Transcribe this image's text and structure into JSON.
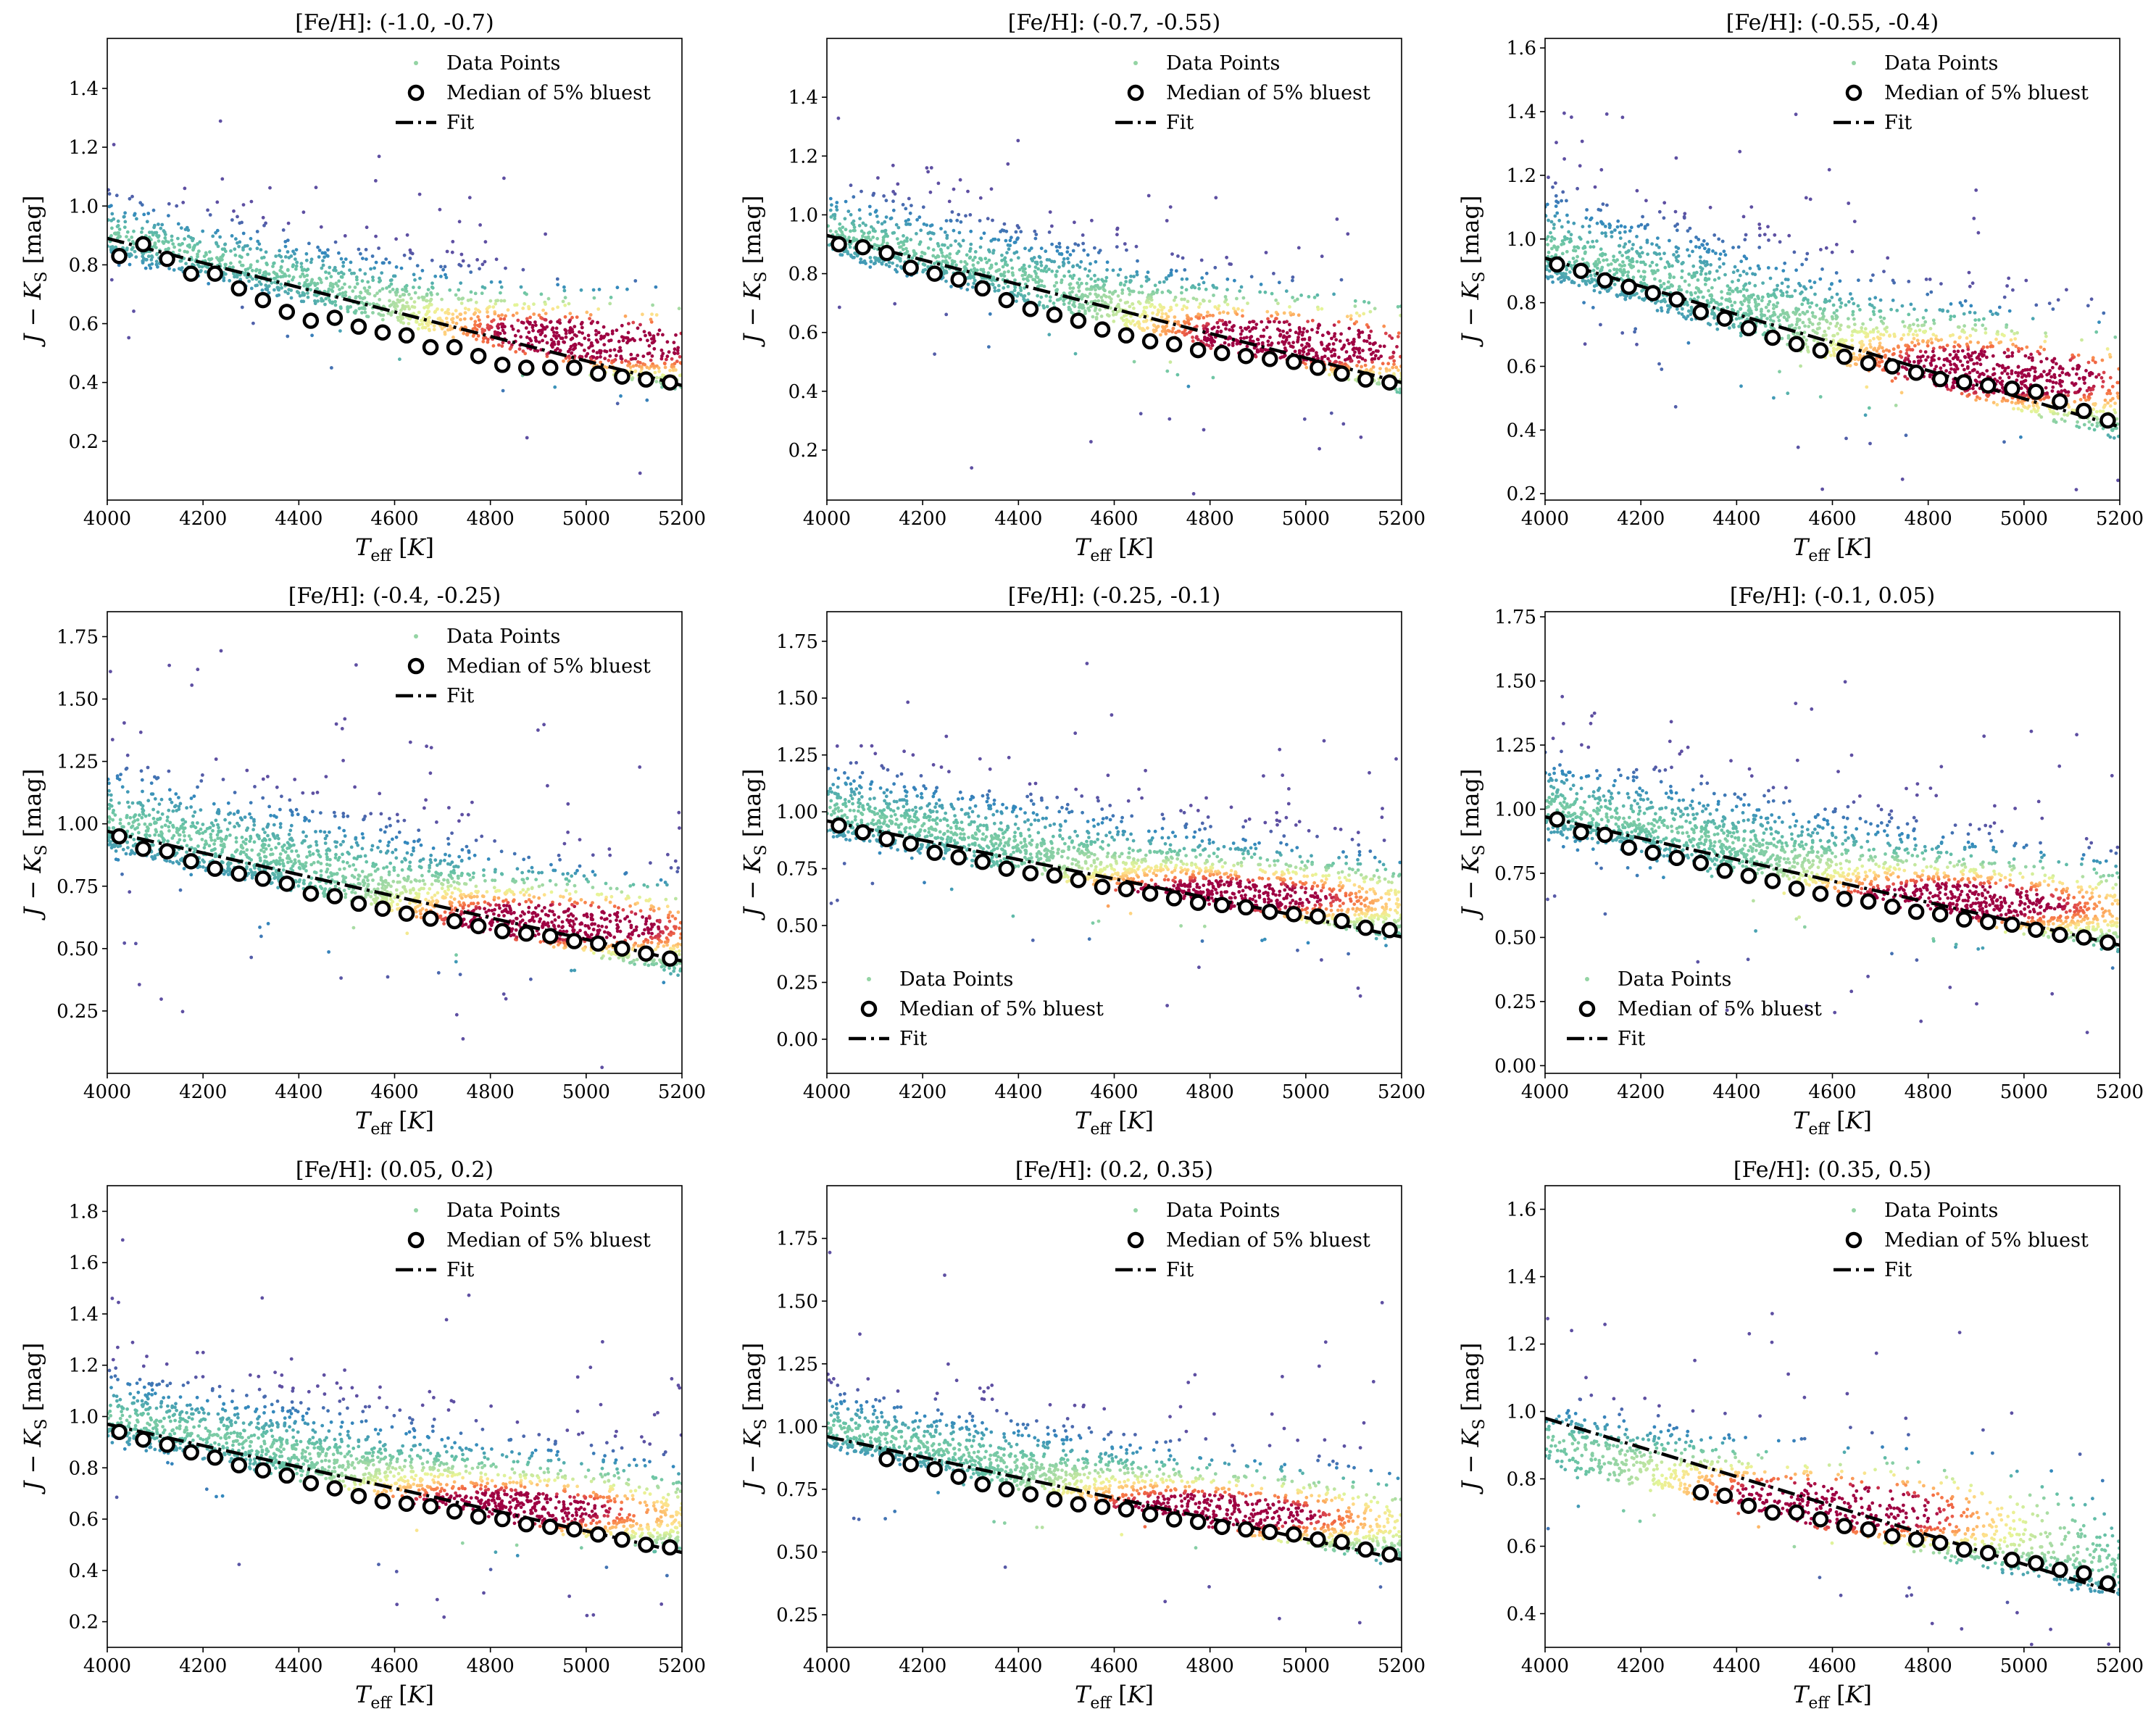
{
  "figure": {
    "x_label": "T_eff [K]",
    "y_label": "J − K_S [mag]",
    "legend_labels": {
      "points": "Data Points",
      "median": "Median of 5% bluest",
      "fit": "Fit"
    }
  },
  "chart_data": [
    {
      "type": "scatter",
      "title": "[Fe/H]: (-1.0, -0.7)",
      "xlim": [
        4000,
        5200
      ],
      "ylim": [
        0.0,
        1.57
      ],
      "xticks": [
        4000,
        4200,
        4400,
        4600,
        4800,
        5000,
        5200
      ],
      "yticks": [
        0.2,
        0.4,
        0.6,
        0.8,
        1.0,
        1.2,
        1.4
      ],
      "legend": "top-right",
      "fit": {
        "x": [
          4000,
          5200
        ],
        "y": [
          0.89,
          0.39
        ]
      },
      "medians": [
        [
          4025,
          0.83
        ],
        [
          4075,
          0.87
        ],
        [
          4125,
          0.82
        ],
        [
          4175,
          0.77
        ],
        [
          4225,
          0.77
        ],
        [
          4275,
          0.72
        ],
        [
          4325,
          0.68
        ],
        [
          4375,
          0.64
        ],
        [
          4425,
          0.61
        ],
        [
          4475,
          0.62
        ],
        [
          4525,
          0.59
        ],
        [
          4575,
          0.57
        ],
        [
          4625,
          0.56
        ],
        [
          4675,
          0.52
        ],
        [
          4725,
          0.52
        ],
        [
          4775,
          0.49
        ],
        [
          4825,
          0.46
        ],
        [
          4875,
          0.45
        ],
        [
          4925,
          0.45
        ],
        [
          4975,
          0.45
        ],
        [
          5025,
          0.43
        ],
        [
          5075,
          0.42
        ],
        [
          5125,
          0.41
        ],
        [
          5175,
          0.4
        ]
      ],
      "cloud": {
        "upper": [
          1.04,
          0.62
        ],
        "lower": [
          0.84,
          0.38
        ],
        "peak_teff": 5030,
        "peak_color": 0.55,
        "n": 1500
      }
    },
    {
      "type": "scatter",
      "title": "[Fe/H]: (-0.7, -0.55)",
      "xlim": [
        4000,
        5200
      ],
      "ylim": [
        0.03,
        1.6
      ],
      "xticks": [
        4000,
        4200,
        4400,
        4600,
        4800,
        5000,
        5200
      ],
      "yticks": [
        0.2,
        0.4,
        0.6,
        0.8,
        1.0,
        1.2,
        1.4
      ],
      "legend": "top-right",
      "fit": {
        "x": [
          4000,
          5200
        ],
        "y": [
          0.93,
          0.43
        ]
      },
      "medians": [
        [
          4025,
          0.9
        ],
        [
          4075,
          0.89
        ],
        [
          4125,
          0.87
        ],
        [
          4175,
          0.82
        ],
        [
          4225,
          0.8
        ],
        [
          4275,
          0.78
        ],
        [
          4325,
          0.75
        ],
        [
          4375,
          0.71
        ],
        [
          4425,
          0.68
        ],
        [
          4475,
          0.66
        ],
        [
          4525,
          0.64
        ],
        [
          4575,
          0.61
        ],
        [
          4625,
          0.59
        ],
        [
          4675,
          0.57
        ],
        [
          4725,
          0.56
        ],
        [
          4775,
          0.54
        ],
        [
          4825,
          0.53
        ],
        [
          4875,
          0.52
        ],
        [
          4925,
          0.51
        ],
        [
          4975,
          0.5
        ],
        [
          5025,
          0.48
        ],
        [
          5075,
          0.46
        ],
        [
          5125,
          0.44
        ],
        [
          5175,
          0.43
        ]
      ],
      "cloud": {
        "upper": [
          1.1,
          0.66
        ],
        "lower": [
          0.87,
          0.4
        ],
        "peak_teff": 4980,
        "peak_color": 0.57,
        "n": 1700
      }
    },
    {
      "type": "scatter",
      "title": "[Fe/H]: (-0.55, -0.4)",
      "xlim": [
        4000,
        5200
      ],
      "ylim": [
        0.18,
        1.63
      ],
      "xticks": [
        4000,
        4200,
        4400,
        4600,
        4800,
        5000,
        5200
      ],
      "yticks": [
        0.2,
        0.4,
        0.6,
        0.8,
        1.0,
        1.2,
        1.4,
        1.6
      ],
      "legend": "top-right",
      "fit": {
        "x": [
          4000,
          5200
        ],
        "y": [
          0.94,
          0.41
        ]
      },
      "medians": [
        [
          4025,
          0.92
        ],
        [
          4075,
          0.9
        ],
        [
          4125,
          0.87
        ],
        [
          4175,
          0.85
        ],
        [
          4225,
          0.83
        ],
        [
          4275,
          0.81
        ],
        [
          4325,
          0.77
        ],
        [
          4375,
          0.75
        ],
        [
          4425,
          0.72
        ],
        [
          4475,
          0.69
        ],
        [
          4525,
          0.67
        ],
        [
          4575,
          0.65
        ],
        [
          4625,
          0.63
        ],
        [
          4675,
          0.61
        ],
        [
          4725,
          0.6
        ],
        [
          4775,
          0.58
        ],
        [
          4825,
          0.56
        ],
        [
          4875,
          0.55
        ],
        [
          4925,
          0.54
        ],
        [
          4975,
          0.53
        ],
        [
          5025,
          0.52
        ],
        [
          5075,
          0.49
        ],
        [
          5125,
          0.46
        ],
        [
          5175,
          0.43
        ]
      ],
      "cloud": {
        "upper": [
          1.16,
          0.68
        ],
        "lower": [
          0.88,
          0.38
        ],
        "peak_teff": 4940,
        "peak_color": 0.58,
        "n": 2000
      }
    },
    {
      "type": "scatter",
      "title": "[Fe/H]: (-0.4, -0.25)",
      "xlim": [
        4000,
        5200
      ],
      "ylim": [
        0.0,
        1.85
      ],
      "xticks": [
        4000,
        4200,
        4400,
        4600,
        4800,
        5000,
        5200
      ],
      "yticks": [
        0.25,
        0.5,
        0.75,
        1.0,
        1.25,
        1.5,
        1.75
      ],
      "ytick_labels": [
        "0.25",
        "0.50",
        "0.75",
        "1.00",
        "1.25",
        "1.50",
        "1.75"
      ],
      "legend": "top-right",
      "fit": {
        "x": [
          4000,
          5200
        ],
        "y": [
          0.97,
          0.45
        ]
      },
      "medians": [
        [
          4025,
          0.95
        ],
        [
          4075,
          0.9
        ],
        [
          4125,
          0.89
        ],
        [
          4175,
          0.85
        ],
        [
          4225,
          0.82
        ],
        [
          4275,
          0.8
        ],
        [
          4325,
          0.78
        ],
        [
          4375,
          0.76
        ],
        [
          4425,
          0.72
        ],
        [
          4475,
          0.71
        ],
        [
          4525,
          0.68
        ],
        [
          4575,
          0.66
        ],
        [
          4625,
          0.64
        ],
        [
          4675,
          0.62
        ],
        [
          4725,
          0.61
        ],
        [
          4775,
          0.59
        ],
        [
          4825,
          0.57
        ],
        [
          4875,
          0.56
        ],
        [
          4925,
          0.55
        ],
        [
          4975,
          0.53
        ],
        [
          5025,
          0.52
        ],
        [
          5075,
          0.5
        ],
        [
          5125,
          0.48
        ],
        [
          5175,
          0.46
        ]
      ],
      "cloud": {
        "upper": [
          1.25,
          0.75
        ],
        "lower": [
          0.9,
          0.4
        ],
        "peak_teff": 4920,
        "peak_color": 0.6,
        "n": 2000
      }
    },
    {
      "type": "scatter",
      "title": "[Fe/H]: (-0.25, -0.1)",
      "xlim": [
        4000,
        5200
      ],
      "ylim": [
        -0.15,
        1.88
      ],
      "xticks": [
        4000,
        4200,
        4400,
        4600,
        4800,
        5000,
        5200
      ],
      "yticks": [
        0.0,
        0.25,
        0.5,
        0.75,
        1.0,
        1.25,
        1.5,
        1.75
      ],
      "ytick_labels": [
        "0.00",
        "0.25",
        "0.50",
        "0.75",
        "1.00",
        "1.25",
        "1.50",
        "1.75"
      ],
      "legend": "bottom-left",
      "fit": {
        "x": [
          4000,
          5200
        ],
        "y": [
          0.96,
          0.45
        ]
      },
      "medians": [
        [
          4025,
          0.94
        ],
        [
          4075,
          0.91
        ],
        [
          4125,
          0.88
        ],
        [
          4175,
          0.86
        ],
        [
          4225,
          0.82
        ],
        [
          4275,
          0.8
        ],
        [
          4325,
          0.78
        ],
        [
          4375,
          0.75
        ],
        [
          4425,
          0.73
        ],
        [
          4475,
          0.72
        ],
        [
          4525,
          0.7
        ],
        [
          4575,
          0.67
        ],
        [
          4625,
          0.66
        ],
        [
          4675,
          0.64
        ],
        [
          4725,
          0.62
        ],
        [
          4775,
          0.6
        ],
        [
          4825,
          0.59
        ],
        [
          4875,
          0.58
        ],
        [
          4925,
          0.56
        ],
        [
          4975,
          0.55
        ],
        [
          5025,
          0.54
        ],
        [
          5075,
          0.52
        ],
        [
          5125,
          0.49
        ],
        [
          5175,
          0.48
        ]
      ],
      "cloud": {
        "upper": [
          1.22,
          0.8
        ],
        "lower": [
          0.9,
          0.44
        ],
        "peak_teff": 4780,
        "peak_color": 0.62,
        "n": 2000
      }
    },
    {
      "type": "scatter",
      "title": "[Fe/H]: (-0.1, 0.05)",
      "xlim": [
        4000,
        5200
      ],
      "ylim": [
        -0.03,
        1.77
      ],
      "xticks": [
        4000,
        4200,
        4400,
        4600,
        4800,
        5000,
        5200
      ],
      "yticks": [
        0.0,
        0.25,
        0.5,
        0.75,
        1.0,
        1.25,
        1.5,
        1.75
      ],
      "ytick_labels": [
        "0.00",
        "0.25",
        "0.50",
        "0.75",
        "1.00",
        "1.25",
        "1.50",
        "1.75"
      ],
      "legend": "bottom-left",
      "fit": {
        "x": [
          4000,
          5200
        ],
        "y": [
          0.97,
          0.47
        ]
      },
      "medians": [
        [
          4025,
          0.96
        ],
        [
          4075,
          0.91
        ],
        [
          4125,
          0.9
        ],
        [
          4175,
          0.85
        ],
        [
          4225,
          0.83
        ],
        [
          4275,
          0.81
        ],
        [
          4325,
          0.79
        ],
        [
          4375,
          0.76
        ],
        [
          4425,
          0.74
        ],
        [
          4475,
          0.72
        ],
        [
          4525,
          0.69
        ],
        [
          4575,
          0.67
        ],
        [
          4625,
          0.65
        ],
        [
          4675,
          0.64
        ],
        [
          4725,
          0.62
        ],
        [
          4775,
          0.6
        ],
        [
          4825,
          0.59
        ],
        [
          4875,
          0.57
        ],
        [
          4925,
          0.56
        ],
        [
          4975,
          0.55
        ],
        [
          5025,
          0.53
        ],
        [
          5075,
          0.51
        ],
        [
          5125,
          0.5
        ],
        [
          5175,
          0.48
        ]
      ],
      "cloud": {
        "upper": [
          1.22,
          0.8
        ],
        "lower": [
          0.91,
          0.45
        ],
        "peak_teff": 4820,
        "peak_color": 0.63,
        "n": 2000
      }
    },
    {
      "type": "scatter",
      "title": "[Fe/H]: (0.05, 0.2)",
      "xlim": [
        4000,
        5200
      ],
      "ylim": [
        0.1,
        1.9
      ],
      "xticks": [
        4000,
        4200,
        4400,
        4600,
        4800,
        5000,
        5200
      ],
      "yticks": [
        0.2,
        0.4,
        0.6,
        0.8,
        1.0,
        1.2,
        1.4,
        1.6,
        1.8
      ],
      "legend": "top-right",
      "fit": {
        "x": [
          4000,
          5200
        ],
        "y": [
          0.97,
          0.47
        ]
      },
      "medians": [
        [
          4025,
          0.94
        ],
        [
          4075,
          0.91
        ],
        [
          4125,
          0.89
        ],
        [
          4175,
          0.86
        ],
        [
          4225,
          0.84
        ],
        [
          4275,
          0.81
        ],
        [
          4325,
          0.79
        ],
        [
          4375,
          0.77
        ],
        [
          4425,
          0.74
        ],
        [
          4475,
          0.72
        ],
        [
          4525,
          0.69
        ],
        [
          4575,
          0.67
        ],
        [
          4625,
          0.66
        ],
        [
          4675,
          0.65
        ],
        [
          4725,
          0.63
        ],
        [
          4775,
          0.61
        ],
        [
          4825,
          0.6
        ],
        [
          4875,
          0.58
        ],
        [
          4925,
          0.57
        ],
        [
          4975,
          0.56
        ],
        [
          5025,
          0.54
        ],
        [
          5075,
          0.52
        ],
        [
          5125,
          0.5
        ],
        [
          5175,
          0.49
        ]
      ],
      "cloud": {
        "upper": [
          1.18,
          0.82
        ],
        "lower": [
          0.91,
          0.46
        ],
        "peak_teff": 4780,
        "peak_color": 0.63,
        "n": 1900
      }
    },
    {
      "type": "scatter",
      "title": "[Fe/H]: (0.2, 0.35)",
      "xlim": [
        4000,
        5200
      ],
      "ylim": [
        0.12,
        1.96
      ],
      "xticks": [
        4000,
        4200,
        4400,
        4600,
        4800,
        5000,
        5200
      ],
      "yticks": [
        0.25,
        0.5,
        0.75,
        1.0,
        1.25,
        1.5,
        1.75
      ],
      "ytick_labels": [
        "0.25",
        "0.50",
        "0.75",
        "1.00",
        "1.25",
        "1.50",
        "1.75"
      ],
      "legend": "top-right",
      "fit": {
        "x": [
          4000,
          5200
        ],
        "y": [
          0.96,
          0.47
        ]
      },
      "medians": [
        [
          4125,
          0.87
        ],
        [
          4175,
          0.85
        ],
        [
          4225,
          0.83
        ],
        [
          4275,
          0.8
        ],
        [
          4325,
          0.77
        ],
        [
          4375,
          0.75
        ],
        [
          4425,
          0.73
        ],
        [
          4475,
          0.71
        ],
        [
          4525,
          0.69
        ],
        [
          4575,
          0.68
        ],
        [
          4625,
          0.67
        ],
        [
          4675,
          0.65
        ],
        [
          4725,
          0.63
        ],
        [
          4775,
          0.62
        ],
        [
          4825,
          0.6
        ],
        [
          4875,
          0.59
        ],
        [
          4925,
          0.58
        ],
        [
          4975,
          0.57
        ],
        [
          5025,
          0.55
        ],
        [
          5075,
          0.54
        ],
        [
          5125,
          0.51
        ],
        [
          5175,
          0.49
        ]
      ],
      "cloud": {
        "upper": [
          1.15,
          0.8
        ],
        "lower": [
          0.92,
          0.45
        ],
        "peak_teff": 4760,
        "peak_color": 0.65,
        "n": 1700
      }
    },
    {
      "type": "scatter",
      "title": "[Fe/H]: (0.35, 0.5)",
      "xlim": [
        4000,
        5200
      ],
      "ylim": [
        0.3,
        1.67
      ],
      "xticks": [
        4000,
        4200,
        4400,
        4600,
        4800,
        5000,
        5200
      ],
      "yticks": [
        0.4,
        0.6,
        0.8,
        1.0,
        1.2,
        1.4,
        1.6
      ],
      "legend": "top-right",
      "fit": {
        "x": [
          4000,
          5200
        ],
        "y": [
          0.98,
          0.46
        ]
      },
      "medians": [
        [
          4325,
          0.76
        ],
        [
          4375,
          0.75
        ],
        [
          4425,
          0.72
        ],
        [
          4475,
          0.7
        ],
        [
          4525,
          0.7
        ],
        [
          4575,
          0.68
        ],
        [
          4625,
          0.66
        ],
        [
          4675,
          0.65
        ],
        [
          4725,
          0.63
        ],
        [
          4775,
          0.62
        ],
        [
          4825,
          0.61
        ],
        [
          4875,
          0.59
        ],
        [
          4925,
          0.58
        ],
        [
          4975,
          0.56
        ],
        [
          5025,
          0.55
        ],
        [
          5075,
          0.53
        ],
        [
          5125,
          0.52
        ],
        [
          5175,
          0.49
        ]
      ],
      "cloud": {
        "upper": [
          1.05,
          0.7
        ],
        "lower": [
          0.85,
          0.45
        ],
        "peak_teff": 4600,
        "peak_color": 0.72,
        "n": 1200
      }
    }
  ]
}
